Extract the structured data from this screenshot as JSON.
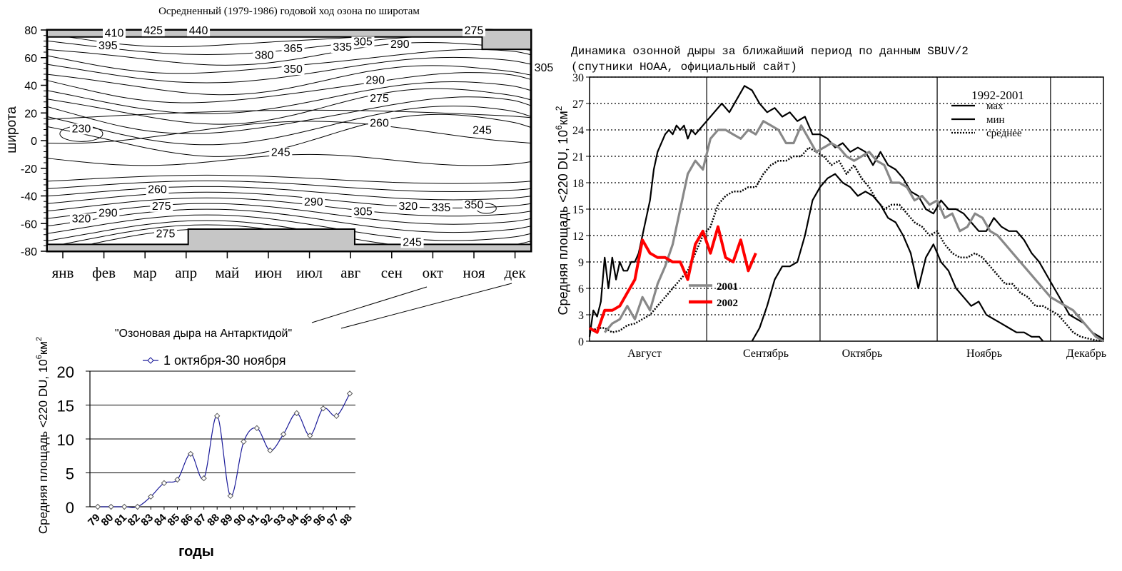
{
  "chart_data": [
    {
      "id": "contour",
      "type": "heatmap",
      "title": "Осредненный (1979-1986) годовой ход озона по широтам",
      "ylabel": "широта",
      "xlabel": "",
      "ylim": [
        -80,
        80
      ],
      "y_ticks": [
        "80",
        "60",
        "40",
        "20",
        "0",
        "-20",
        "-40",
        "-60",
        "-80"
      ],
      "x_ticks": [
        "янв",
        "фев",
        "мар",
        "апр",
        "май",
        "июн",
        "июл",
        "авг",
        "сен",
        "окт",
        "ноя",
        "дек"
      ],
      "contour_labels": [
        {
          "text": "410",
          "month": 1.25,
          "lat": 75
        },
        {
          "text": "425",
          "month": 2.2,
          "lat": 77
        },
        {
          "text": "440",
          "month": 3.3,
          "lat": 77
        },
        {
          "text": "275",
          "month": 10.0,
          "lat": 77
        },
        {
          "text": "395",
          "month": 1.1,
          "lat": 66
        },
        {
          "text": "305",
          "month": 7.3,
          "lat": 69
        },
        {
          "text": "290",
          "month": 8.2,
          "lat": 67
        },
        {
          "text": "365",
          "month": 5.6,
          "lat": 64
        },
        {
          "text": "335",
          "month": 6.8,
          "lat": 65
        },
        {
          "text": "380",
          "month": 4.9,
          "lat": 59
        },
        {
          "text": "305",
          "month": 11.7,
          "lat": 50
        },
        {
          "text": "350",
          "month": 5.6,
          "lat": 49
        },
        {
          "text": "290",
          "month": 7.6,
          "lat": 41
        },
        {
          "text": "275",
          "month": 7.7,
          "lat": 28
        },
        {
          "text": "260",
          "month": 7.7,
          "lat": 10
        },
        {
          "text": "230",
          "month": 0.45,
          "lat": 6
        },
        {
          "text": "245",
          "month": 10.2,
          "lat": 5
        },
        {
          "text": "245",
          "month": 5.3,
          "lat": -11
        },
        {
          "text": "260",
          "month": 2.3,
          "lat": -38
        },
        {
          "text": "290",
          "month": 6.1,
          "lat": -47
        },
        {
          "text": "275",
          "month": 2.4,
          "lat": -50
        },
        {
          "text": "320",
          "month": 8.4,
          "lat": -50
        },
        {
          "text": "335",
          "month": 9.2,
          "lat": -51
        },
        {
          "text": "350",
          "month": 10.0,
          "lat": -49
        },
        {
          "text": "290",
          "month": 1.1,
          "lat": -55
        },
        {
          "text": "305",
          "month": 7.3,
          "lat": -54
        },
        {
          "text": "320",
          "month": 0.45,
          "lat": -59
        },
        {
          "text": "275",
          "month": 2.5,
          "lat": -70
        },
        {
          "text": "245",
          "month": 8.5,
          "lat": -76
        }
      ],
      "mask_regions": [
        "polar night north (окт–дек)",
        "polar night south (апр–авг)"
      ]
    },
    {
      "id": "dynamics",
      "type": "line",
      "title_lines": [
        "Динамика озонной дыры за ближайший период по данным SBUV/2",
        "(спутники НОАА, официальный сайт)"
      ],
      "ylabel": "Средняя площадь <220 DU, 10",
      "ylabel_exp": "6",
      "ylabel_unit": "км",
      "ylabel_unit_exp": "2",
      "ylim": [
        0,
        30
      ],
      "xlim": [
        0,
        136
      ],
      "y_ticks": [
        "0",
        "3",
        "6",
        "9",
        "12",
        "15",
        "18",
        "21",
        "24",
        "27",
        "30"
      ],
      "x_labels": [
        "Август",
        "Сентябрь",
        "Октябрь",
        "Ноябрь",
        "Декабрь"
      ],
      "month_boundaries_days": [
        31,
        61,
        92,
        122
      ],
      "legend_group_title": "1992-2001",
      "legend_items": [
        "мах",
        "мин",
        "среднее"
      ],
      "series_labels": [
        "2001",
        "2002"
      ],
      "colors": {
        "max": "#000000",
        "min": "#000000",
        "mean": "#000000",
        "y2001": "#888888",
        "y2002": "#ff0000"
      },
      "series": [
        {
          "name": "мах",
          "style": "solid",
          "x": [
            0,
            1,
            2,
            3,
            4,
            5,
            6,
            7,
            8,
            9,
            10,
            11,
            12,
            13,
            14,
            15,
            16,
            17,
            18,
            19,
            20,
            21,
            22,
            23,
            24,
            25,
            26,
            27,
            28,
            29,
            30,
            31,
            33,
            35,
            37,
            39,
            41,
            43,
            45,
            47,
            49,
            51,
            53,
            55,
            57,
            59,
            61,
            63,
            65,
            67,
            69,
            71,
            73,
            75,
            77,
            79,
            81,
            83,
            85,
            87,
            89,
            91,
            93,
            95,
            97,
            99,
            101,
            103,
            105,
            107,
            109,
            111,
            113,
            115,
            117,
            119,
            121,
            123,
            125,
            127,
            129,
            131,
            133,
            135,
            136
          ],
          "values": [
            0.5,
            3.5,
            2.8,
            4.5,
            9.5,
            6,
            9.5,
            7,
            9,
            8,
            8,
            9,
            9,
            10,
            12,
            14,
            16,
            19.5,
            21.5,
            22.5,
            23.5,
            24,
            23.5,
            24.5,
            24,
            24.5,
            23,
            24,
            23.5,
            24,
            24.5,
            25,
            26,
            27,
            26,
            27.5,
            29,
            28.5,
            27,
            26,
            26.5,
            25.5,
            26,
            25,
            25.5,
            23.5,
            23.5,
            23,
            22,
            22.5,
            21.5,
            22,
            21.5,
            20,
            21.5,
            20,
            19.5,
            18.5,
            17,
            16.5,
            15,
            14.5,
            16,
            15,
            15,
            14.5,
            13.5,
            12.5,
            12.5,
            14,
            13,
            12.5,
            12.5,
            11.5,
            10,
            9,
            7.5,
            6,
            4.5,
            3,
            2.5,
            2,
            1,
            0.5,
            0.2
          ]
        },
        {
          "name": "мин",
          "style": "solid",
          "x": [
            43,
            45,
            47,
            49,
            51,
            53,
            55,
            57,
            59,
            61,
            63,
            65,
            67,
            69,
            71,
            73,
            75,
            77,
            79,
            81,
            83,
            85,
            87,
            89,
            91,
            93,
            95,
            97,
            99,
            101,
            103,
            105,
            107,
            109,
            111,
            113,
            115,
            117,
            119,
            120
          ],
          "values": [
            0,
            1.5,
            4,
            7,
            8.5,
            8.5,
            9,
            12,
            16,
            17.5,
            18.5,
            19,
            18,
            17.5,
            16.5,
            17,
            16.5,
            15.5,
            14,
            13.5,
            12,
            10,
            6,
            9.5,
            11,
            9,
            8,
            6,
            5,
            4,
            4.5,
            3,
            2.5,
            2,
            1.5,
            1,
            1,
            0.5,
            0.5,
            0
          ]
        },
        {
          "name": "среднее",
          "style": "dotted",
          "x": [
            0,
            2,
            4,
            6,
            8,
            10,
            12,
            14,
            16,
            18,
            20,
            22,
            24,
            26,
            28,
            30,
            32,
            34,
            36,
            38,
            40,
            42,
            44,
            46,
            48,
            50,
            52,
            54,
            56,
            58,
            60,
            62,
            64,
            66,
            68,
            70,
            72,
            74,
            76,
            78,
            80,
            82,
            84,
            86,
            88,
            90,
            92,
            94,
            96,
            98,
            100,
            102,
            104,
            106,
            108,
            110,
            112,
            114,
            116,
            118,
            120,
            122,
            124,
            126,
            128,
            130,
            132,
            134,
            136
          ],
          "values": [
            1,
            1.5,
            1.5,
            1,
            1.2,
            1.8,
            2,
            2.5,
            3,
            4,
            5,
            6,
            7,
            8,
            10,
            12,
            13,
            15.5,
            16.5,
            17,
            17,
            17.5,
            17.5,
            19,
            20,
            20.5,
            20.5,
            21,
            21,
            22,
            21.5,
            21,
            20,
            20.5,
            19,
            20,
            18.5,
            17.5,
            16,
            15,
            15.5,
            15.5,
            14.5,
            13.5,
            13,
            12,
            12.5,
            11,
            10,
            9.5,
            9.5,
            10,
            9.5,
            8.5,
            7.5,
            6.5,
            6.5,
            5.5,
            5,
            4,
            4,
            3.5,
            3,
            2,
            1,
            0.5,
            0.3,
            0.1,
            0
          ]
        },
        {
          "name": "2001",
          "style": "solid",
          "x": [
            4,
            6,
            8,
            10,
            12,
            14,
            16,
            18,
            20,
            22,
            24,
            26,
            28,
            30,
            32,
            34,
            36,
            38,
            40,
            42,
            44,
            46,
            48,
            50,
            52,
            54,
            56,
            58,
            60,
            62,
            64,
            66,
            68,
            70,
            72,
            74,
            76,
            78,
            80,
            82,
            84,
            86,
            88,
            90,
            92,
            94,
            96,
            98,
            100,
            102,
            104,
            106,
            108,
            110,
            112,
            114,
            116,
            118,
            120,
            122,
            124,
            126,
            128,
            130,
            132,
            134,
            136
          ],
          "values": [
            1,
            2,
            2.5,
            4,
            2.5,
            5,
            3.5,
            6.5,
            8.5,
            11,
            15,
            19,
            20.5,
            19.5,
            23,
            24,
            24,
            23.5,
            23,
            24,
            23.5,
            25,
            24.5,
            24,
            22.5,
            22.5,
            24.5,
            23,
            21.5,
            22,
            22.5,
            22,
            21,
            20.5,
            21,
            21.5,
            20.5,
            20,
            18,
            18,
            17.5,
            16,
            16.5,
            15.5,
            16,
            14,
            14.5,
            12.5,
            13,
            14.5,
            14,
            12.5,
            12,
            11,
            10,
            9,
            8,
            7,
            6,
            5,
            4.5,
            4,
            3.5,
            2.5,
            1.5,
            0.5,
            0
          ]
        },
        {
          "name": "2002",
          "style": "solid",
          "x": [
            0,
            2,
            4,
            6,
            8,
            10,
            12,
            14,
            16,
            18,
            20,
            22,
            24,
            26,
            28,
            30,
            32,
            34,
            36,
            38,
            40,
            42,
            44
          ],
          "values": [
            1.5,
            1,
            3.5,
            3.5,
            4,
            5.5,
            7,
            11.5,
            10,
            9.5,
            9.5,
            9,
            9,
            7,
            11,
            12.5,
            10,
            13,
            9.5,
            9,
            11.5,
            8,
            10
          ]
        }
      ]
    },
    {
      "id": "annual",
      "type": "line",
      "title": "\"Озоновая дыра на Антарктидой\"",
      "ylabel": "Средняя площадь <220 DU, 10",
      "ylabel_exp": "6",
      "ylabel_unit": "км",
      "ylabel_unit_exp": "2",
      "xlabel": "годы",
      "ylim": [
        0,
        20
      ],
      "y_ticks": [
        "0",
        "5",
        "10",
        "15",
        "20"
      ],
      "legend": "1 октября-30 ноября",
      "categories": [
        "79",
        "80",
        "81",
        "82",
        "83",
        "84",
        "85",
        "86",
        "87",
        "88",
        "89",
        "90",
        "91",
        "92",
        "93",
        "94",
        "95",
        "96",
        "97",
        "98"
      ],
      "series": [
        {
          "name": "1 октября-30 ноября",
          "values": [
            0,
            0,
            0,
            0,
            1.5,
            3.5,
            4,
            7.8,
            4.2,
            13.4,
            1.6,
            9.6,
            11.6,
            8.3,
            10.7,
            13.8,
            10.5,
            14.5,
            13.4,
            16.7
          ]
        }
      ],
      "color": "#1a1a99"
    }
  ]
}
